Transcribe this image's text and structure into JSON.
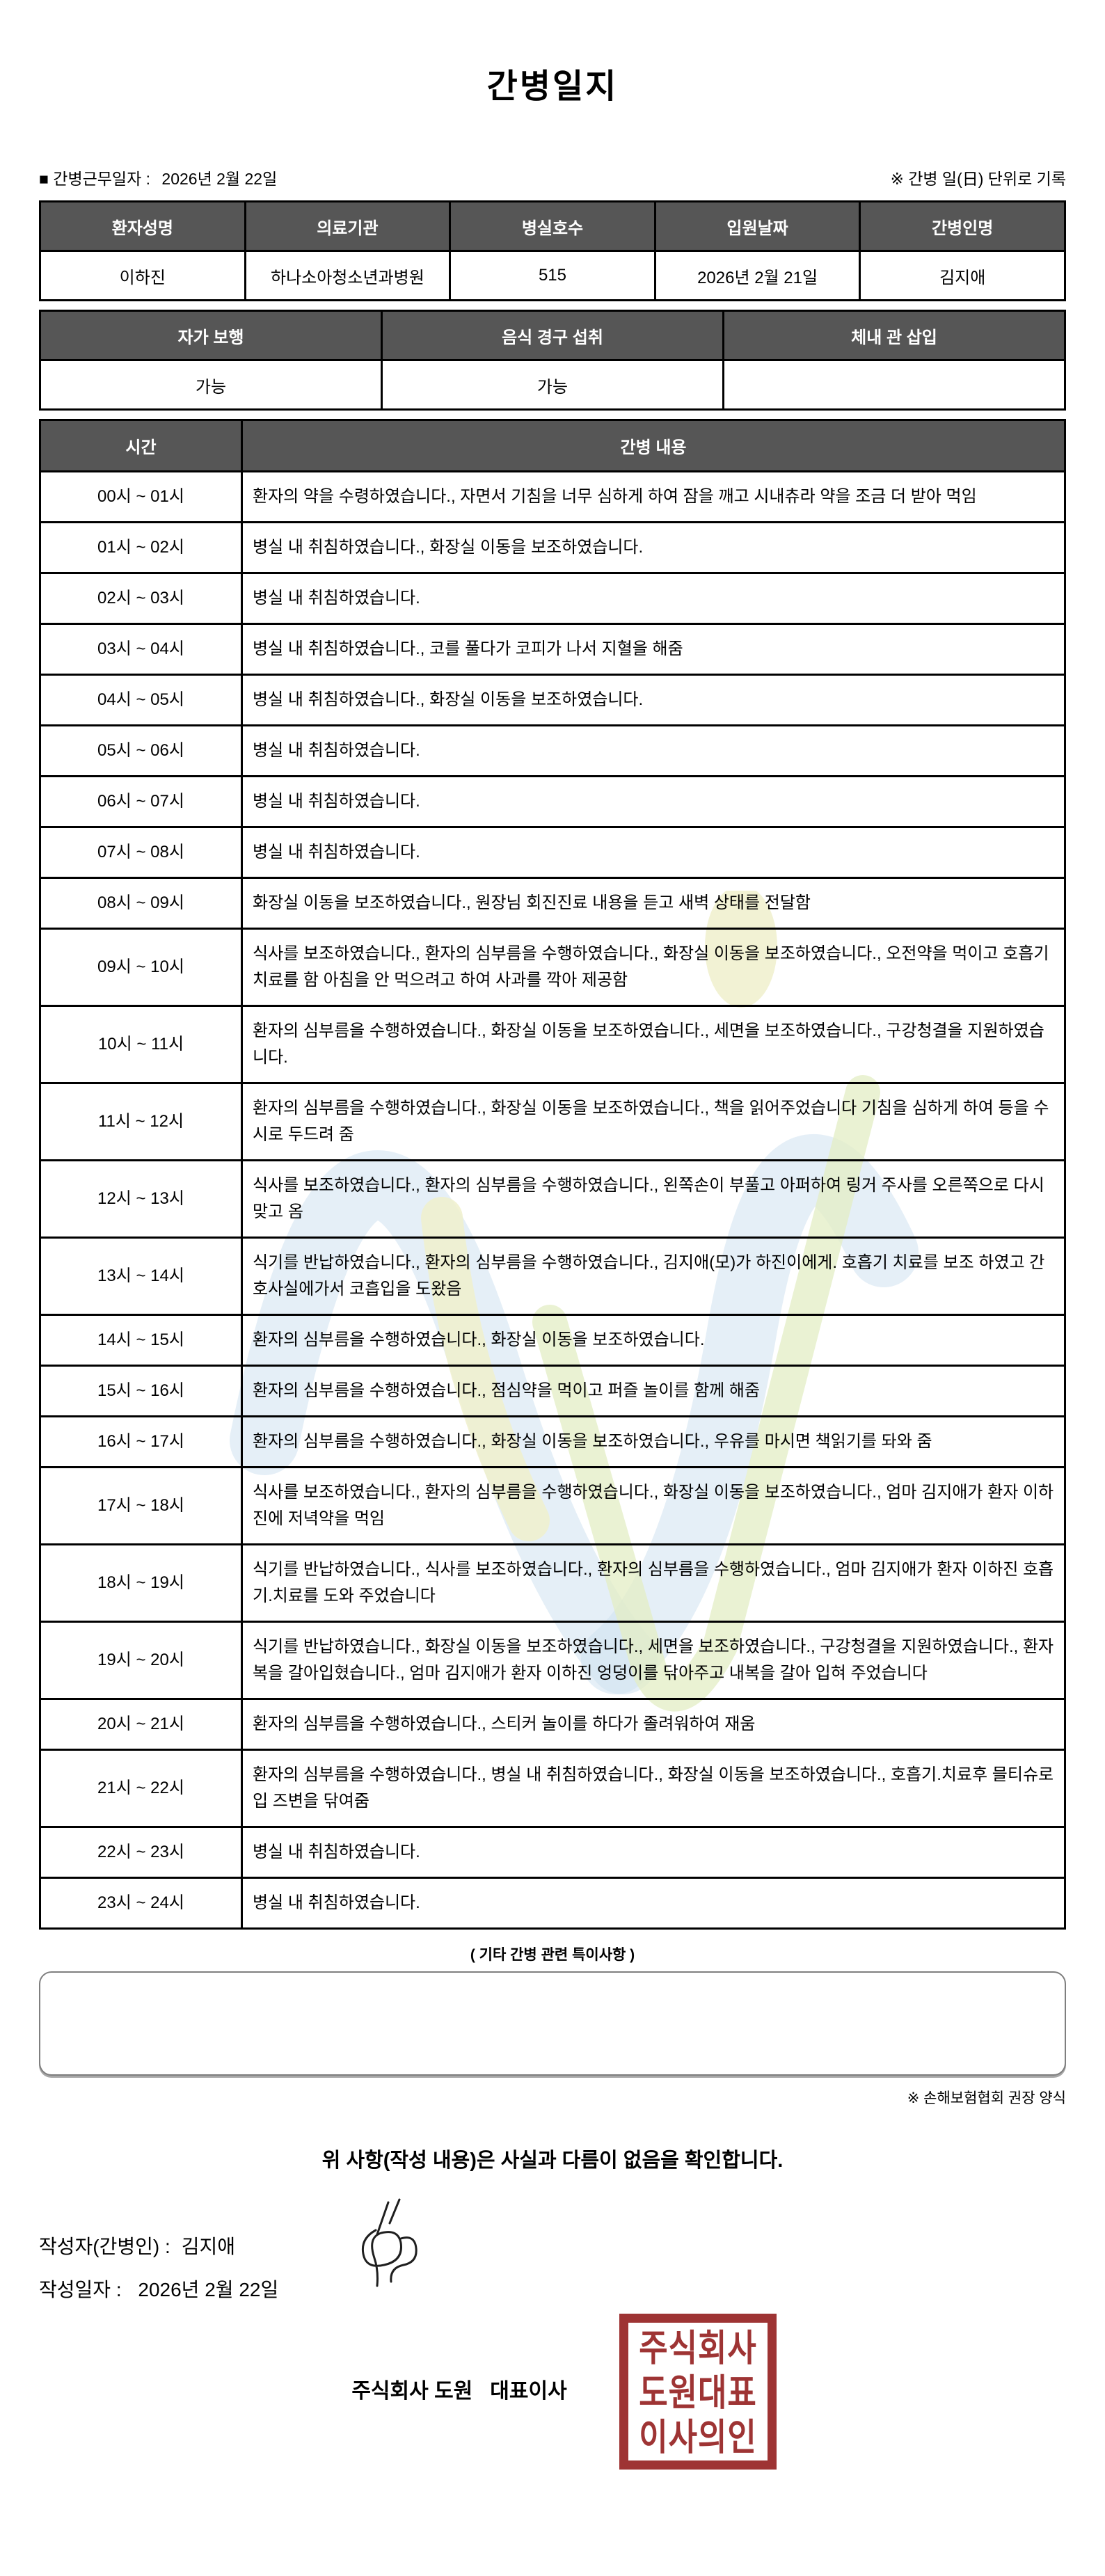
{
  "title": "간병일지",
  "meta": {
    "work_date_label": "■ 간병근무일자 :",
    "work_date": "2026년 2월 22일",
    "note_right": "※ 간병 일(日) 단위로 기록"
  },
  "patient_table": {
    "headers": [
      "환자성명",
      "의료기관",
      "병실호수",
      "입원날짜",
      "간병인명"
    ],
    "values": [
      "이하진",
      "하나소아청소년과병원",
      "515",
      "2026년 2월 21일",
      "김지애"
    ]
  },
  "status_table": {
    "headers": [
      "자가 보행",
      "음식 경구 섭취",
      "체내 관 삽입"
    ],
    "values": [
      "가능",
      "가능",
      ""
    ]
  },
  "care_table": {
    "headers": [
      "시간",
      "간병 내용"
    ],
    "rows": [
      {
        "time": "00시 ~ 01시",
        "content": "환자의 약을 수령하였습니다., 자면서 기침을 너무 심하게 하여 잠을 깨고 시내츄라 약을 조금 더 받아 먹임"
      },
      {
        "time": "01시 ~ 02시",
        "content": "병실 내 취침하였습니다., 화장실 이동을 보조하였습니다."
      },
      {
        "time": "02시 ~ 03시",
        "content": "병실 내 취침하였습니다."
      },
      {
        "time": "03시 ~ 04시",
        "content": "병실 내 취침하였습니다., 코를 풀다가 코피가 나서 지혈을 해줌"
      },
      {
        "time": "04시 ~ 05시",
        "content": "병실 내 취침하였습니다., 화장실 이동을 보조하였습니다."
      },
      {
        "time": "05시 ~ 06시",
        "content": "병실 내 취침하였습니다."
      },
      {
        "time": "06시 ~ 07시",
        "content": "병실 내 취침하였습니다."
      },
      {
        "time": "07시 ~ 08시",
        "content": "병실 내 취침하였습니다."
      },
      {
        "time": "08시 ~ 09시",
        "content": "화장실 이동을 보조하였습니다., 원장님 회진진료 내용을 듣고 새벽 상태를 전달함"
      },
      {
        "time": "09시 ~ 10시",
        "content": "식사를 보조하였습니다., 환자의 심부름을 수행하였습니다., 화장실 이동을 보조하였습니다., 오전약을 먹이고 호흡기 치료를 함 아침을 안 먹으려고 하여 사과를 깍아 제공함"
      },
      {
        "time": "10시 ~ 11시",
        "content": "환자의 심부름을 수행하였습니다., 화장실 이동을 보조하였습니다., 세면을 보조하였습니다., 구강청결을 지원하였습니다."
      },
      {
        "time": "11시 ~ 12시",
        "content": "환자의 심부름을 수행하였습니다., 화장실 이동을 보조하였습니다., 책을 읽어주었습니다 기침을 심하게 하여 등을 수시로 두드려 줌"
      },
      {
        "time": "12시 ~ 13시",
        "content": "식사를 보조하였습니다., 환자의 심부름을 수행하였습니다., 왼쪽손이 부풀고 아퍼하여 링거 주사를 오른쪽으로 다시 맞고 옴"
      },
      {
        "time": "13시 ~ 14시",
        "content": "식기를 반납하였습니다., 환자의 심부름을 수행하였습니다., 김지애(모)가 하진이에게. 호흡기 치료를 보조 하였고 간호사실에가서 코흡입을 도왔음"
      },
      {
        "time": "14시 ~ 15시",
        "content": "환자의 심부름을 수행하였습니다., 화장실 이동을 보조하였습니다."
      },
      {
        "time": "15시 ~ 16시",
        "content": "환자의 심부름을 수행하였습니다., 점심약을 먹이고 퍼즐 놀이를 함께 해줌"
      },
      {
        "time": "16시 ~ 17시",
        "content": "환자의 심부름을 수행하였습니다., 화장실 이동을 보조하였습니다., 우유를 마시면 책읽기를 돠와 줌"
      },
      {
        "time": "17시 ~ 18시",
        "content": "식사를 보조하였습니다., 환자의 심부름을 수행하였습니다., 화장실 이동을 보조하였습니다., 엄마 김지애가 환자 이하진에 저녁약을 먹임"
      },
      {
        "time": "18시 ~ 19시",
        "content": "식기를 반납하였습니다., 식사를 보조하였습니다., 환자의 심부름을 수행하였습니다., 엄마 김지애가 환자 이하진 호흡기.치료를 도와 주었습니다"
      },
      {
        "time": "19시 ~ 20시",
        "content": "식기를 반납하였습니다., 화장실 이동을 보조하였습니다., 세면을 보조하였습니다., 구강청결을 지원하였습니다., 환자복을 갈아입혔습니다., 엄마 김지애가 환자 이하진 엉덩이를 닦아주고 내복을 갈아 입혀 주었습니다"
      },
      {
        "time": "20시 ~ 21시",
        "content": "환자의 심부름을 수행하였습니다., 스티커 놀이를 하다가 졸려워하여 재움"
      },
      {
        "time": "21시 ~ 22시",
        "content": "환자의 심부름을 수행하였습니다., 병실 내 취침하였습니다., 화장실 이동을 보조하였습니다., 호흡기.치료후 믈티슈로 입 즈변을 닦여줌"
      },
      {
        "time": "22시 ~ 23시",
        "content": "병실 내 취침하였습니다."
      },
      {
        "time": "23시 ~ 24시",
        "content": "병실 내 취침하였습니다."
      }
    ]
  },
  "extra": {
    "label": "( 기타 간병 관련 특이사항 )",
    "box_value": "",
    "form_note": "※ 손해보험협회 권장 양식"
  },
  "confirmation": "위 사항(작성 내용)은 사실과 다름이 없음을 확인합니다.",
  "writer": {
    "label": "작성자(간병인) :",
    "name": "김지애"
  },
  "write_date": {
    "label": "작성일자 :",
    "date": "2026년 2월 22일"
  },
  "company": {
    "line": "주식회사 도원   대표이사",
    "seal_lines": [
      "주식회사",
      "도원대표",
      "이사의인"
    ],
    "seal_color": "#9e3434"
  },
  "colors": {
    "table_header_bg": "#565656",
    "table_header_text": "#ffffff",
    "border": "#000000",
    "watermark_blue": "#cfe1f0",
    "watermark_yellow": "#f0f0cd",
    "watermark_green": "#e3edc4"
  }
}
